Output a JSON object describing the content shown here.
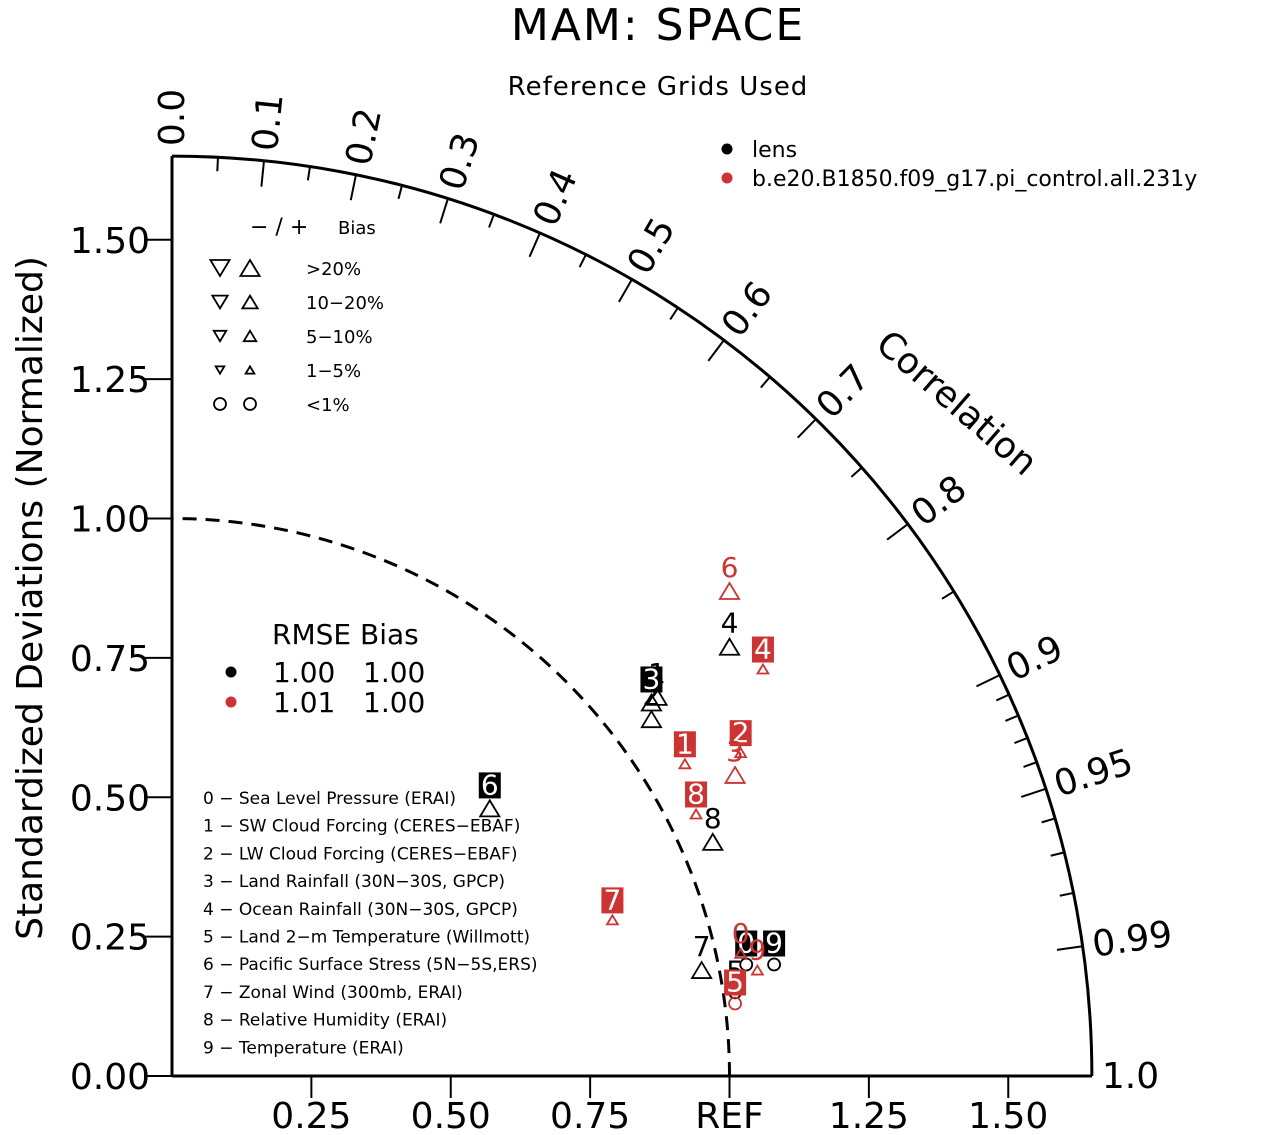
{
  "colors": {
    "lens": "#000000",
    "control": "#cc3333",
    "axis": "#000000"
  },
  "chart_data": {
    "type": "scatter",
    "title": "MAM: SPACE",
    "subtitle": "Reference Grids Used",
    "ylabel": "Standardized Deviations (Normalized)",
    "corr_label": "Correlation",
    "ref_label": "REF",
    "xlim": [
      0,
      1.65
    ],
    "ylim": [
      0,
      1.65
    ],
    "reference_std": 1.0,
    "y_ticks": [
      {
        "v": 0.0,
        "label": "0.00"
      },
      {
        "v": 0.25,
        "label": "0.25"
      },
      {
        "v": 0.5,
        "label": "0.50"
      },
      {
        "v": 0.75,
        "label": "0.75"
      },
      {
        "v": 1.0,
        "label": "1.00"
      },
      {
        "v": 1.25,
        "label": "1.25"
      },
      {
        "v": 1.5,
        "label": "1.50"
      }
    ],
    "x_ticks": [
      {
        "v": 0.25,
        "label": "0.25"
      },
      {
        "v": 0.5,
        "label": "0.50"
      },
      {
        "v": 0.75,
        "label": "0.75"
      },
      {
        "v": 1.0,
        "label": "REF"
      },
      {
        "v": 1.25,
        "label": "1.25"
      },
      {
        "v": 1.5,
        "label": "1.50"
      }
    ],
    "corr_ticks": [
      {
        "v": 0.0,
        "label": "0.0"
      },
      {
        "v": 0.1,
        "label": "0.1"
      },
      {
        "v": 0.2,
        "label": "0.2"
      },
      {
        "v": 0.3,
        "label": "0.3"
      },
      {
        "v": 0.4,
        "label": "0.4"
      },
      {
        "v": 0.5,
        "label": "0.5"
      },
      {
        "v": 0.6,
        "label": "0.6"
      },
      {
        "v": 0.7,
        "label": "0.7"
      },
      {
        "v": 0.8,
        "label": "0.8"
      },
      {
        "v": 0.9,
        "label": "0.9"
      },
      {
        "v": 0.95,
        "label": "0.95"
      },
      {
        "v": 0.99,
        "label": "0.99"
      },
      {
        "v": 1.0,
        "label": "1.0"
      }
    ],
    "minor_corr_ticks": [
      0.05,
      0.15,
      0.25,
      0.35,
      0.45,
      0.55,
      0.65,
      0.75,
      0.85,
      0.91,
      0.92,
      0.93,
      0.94,
      0.96,
      0.97,
      0.98
    ],
    "series": [
      {
        "name": "lens",
        "color": "#000000",
        "rmse": "1.00",
        "bias": "1.00",
        "points": [
          {
            "id": "0",
            "x": 1.03,
            "y": 0.2,
            "marker": "circle",
            "boxed": true
          },
          {
            "id": "1",
            "x": 0.87,
            "y": 0.68,
            "marker": "up-triangle",
            "boxed": false
          },
          {
            "id": "2",
            "x": 0.86,
            "y": 0.64,
            "marker": "up-triangle",
            "boxed": false
          },
          {
            "id": "3",
            "x": 0.86,
            "y": 0.67,
            "marker": "up-triangle",
            "boxed": true
          },
          {
            "id": "4",
            "x": 1.0,
            "y": 0.77,
            "marker": "up-triangle",
            "boxed": false
          },
          {
            "id": "5",
            "x": 1.01,
            "y": 0.15,
            "marker": "circle",
            "boxed": false
          },
          {
            "id": "6",
            "x": 0.57,
            "y": 0.48,
            "marker": "up-triangle",
            "boxed": true
          },
          {
            "id": "7",
            "x": 0.95,
            "y": 0.19,
            "marker": "up-triangle",
            "boxed": false
          },
          {
            "id": "8",
            "x": 0.97,
            "y": 0.42,
            "marker": "up-triangle",
            "boxed": false
          },
          {
            "id": "9",
            "x": 1.08,
            "y": 0.2,
            "marker": "circle",
            "boxed": true
          }
        ]
      },
      {
        "name": "b.e20.B1850.f09_g17.pi_control.all.231y",
        "color": "#cc3333",
        "rmse": "1.01",
        "bias": "1.00",
        "points": [
          {
            "id": "0",
            "x": 1.02,
            "y": 0.22,
            "marker": "up-triangle-small",
            "boxed": false
          },
          {
            "id": "1",
            "x": 0.92,
            "y": 0.56,
            "marker": "up-triangle-small",
            "boxed": true
          },
          {
            "id": "2",
            "x": 1.02,
            "y": 0.58,
            "marker": "up-triangle-small",
            "boxed": true
          },
          {
            "id": "3",
            "x": 1.01,
            "y": 0.54,
            "marker": "up-triangle",
            "boxed": false
          },
          {
            "id": "4",
            "x": 1.06,
            "y": 0.73,
            "marker": "up-triangle-small",
            "boxed": true
          },
          {
            "id": "5",
            "x": 1.01,
            "y": 0.13,
            "marker": "circle",
            "boxed": true
          },
          {
            "id": "6",
            "x": 1.0,
            "y": 0.87,
            "marker": "up-triangle",
            "boxed": false
          },
          {
            "id": "7",
            "x": 0.79,
            "y": 0.28,
            "marker": "up-triangle-small",
            "boxed": true
          },
          {
            "id": "8",
            "x": 0.94,
            "y": 0.47,
            "marker": "up-triangle-small",
            "boxed": true
          },
          {
            "id": "9",
            "x": 1.05,
            "y": 0.19,
            "marker": "up-triangle-small",
            "boxed": false
          }
        ]
      }
    ],
    "bias_legend": {
      "header_sign": "−  /  +",
      "header_label": "Bias",
      "rows": [
        {
          "label": ">20%",
          "shape": "triangle",
          "scale": 1.0
        },
        {
          "label": "10−20%",
          "shape": "triangle",
          "scale": 0.8
        },
        {
          "label": "5−10%",
          "shape": "triangle",
          "scale": 0.65
        },
        {
          "label": "1−5%",
          "shape": "triangle",
          "scale": 0.45
        },
        {
          "label": "<1%",
          "shape": "circle",
          "scale": 1.0
        }
      ]
    },
    "stats_header": "RMSE Bias",
    "variables": [
      "0 − Sea Level Pressure (ERAI)",
      "1 − SW Cloud Forcing (CERES−EBAF)",
      "2 − LW Cloud Forcing (CERES−EBAF)",
      "3 − Land Rainfall (30N−30S, GPCP)",
      "4 − Ocean Rainfall (30N−30S, GPCP)",
      "5 − Land 2−m Temperature (Willmott)",
      "6 − Pacific Surface Stress (5N−5S,ERS)",
      "7 − Zonal Wind (300mb, ERAI)",
      "8 − Relative Humidity (ERAI)",
      "9 − Temperature (ERAI)"
    ]
  }
}
